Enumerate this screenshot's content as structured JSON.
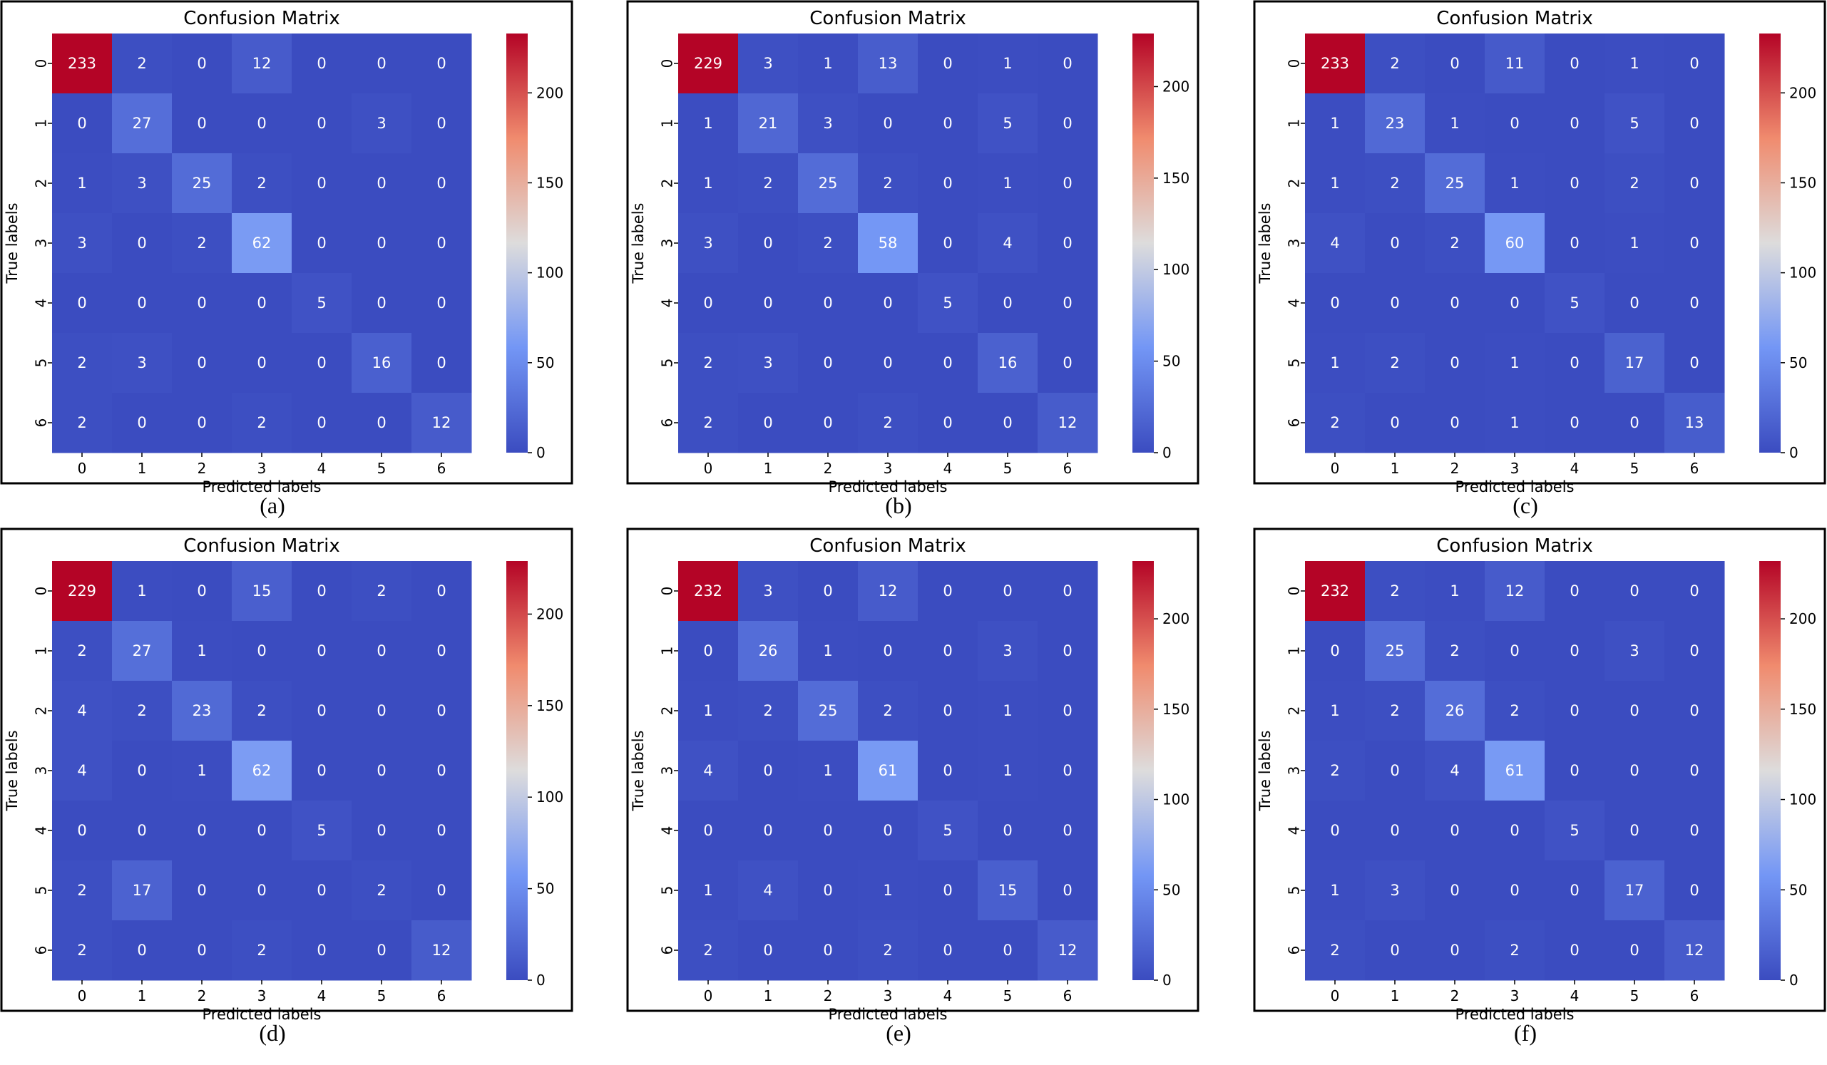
{
  "chart_data": [
    {
      "type": "heatmap",
      "caption": "(a)",
      "title": "Confusion Matrix",
      "xlabel": "Predicted labels",
      "ylabel": "True labels",
      "x_categories": [
        "0",
        "1",
        "2",
        "3",
        "4",
        "5",
        "6"
      ],
      "y_categories": [
        "0",
        "1",
        "2",
        "3",
        "4",
        "5",
        "6"
      ],
      "matrix": [
        [
          233,
          2,
          0,
          12,
          0,
          0,
          0
        ],
        [
          0,
          27,
          0,
          0,
          0,
          3,
          0
        ],
        [
          1,
          3,
          25,
          2,
          0,
          0,
          0
        ],
        [
          3,
          0,
          2,
          62,
          0,
          0,
          0
        ],
        [
          0,
          0,
          0,
          0,
          5,
          0,
          0
        ],
        [
          2,
          3,
          0,
          0,
          0,
          16,
          0
        ],
        [
          2,
          0,
          0,
          2,
          0,
          0,
          12
        ]
      ],
      "colorbar": {
        "min": 0,
        "max": 233,
        "ticks": [
          "0",
          "50",
          "100",
          "150",
          "200"
        ],
        "colormap": "coolwarm"
      }
    },
    {
      "type": "heatmap",
      "caption": "(b)",
      "title": "Confusion Matrix",
      "xlabel": "Predicted labels",
      "ylabel": "True labels",
      "x_categories": [
        "0",
        "1",
        "2",
        "3",
        "4",
        "5",
        "6"
      ],
      "y_categories": [
        "0",
        "1",
        "2",
        "3",
        "4",
        "5",
        "6"
      ],
      "matrix": [
        [
          229,
          3,
          1,
          13,
          0,
          1,
          0
        ],
        [
          1,
          21,
          3,
          0,
          0,
          5,
          0
        ],
        [
          1,
          2,
          25,
          2,
          0,
          1,
          0
        ],
        [
          3,
          0,
          2,
          58,
          0,
          4,
          0
        ],
        [
          0,
          0,
          0,
          0,
          5,
          0,
          0
        ],
        [
          2,
          3,
          0,
          0,
          0,
          16,
          0
        ],
        [
          2,
          0,
          0,
          2,
          0,
          0,
          12
        ]
      ],
      "colorbar": {
        "min": 0,
        "max": 229,
        "ticks": [
          "0",
          "50",
          "100",
          "150",
          "200"
        ],
        "colormap": "coolwarm"
      }
    },
    {
      "type": "heatmap",
      "caption": "(c)",
      "title": "Confusion Matrix",
      "xlabel": "Predicted labels",
      "ylabel": "True labels",
      "x_categories": [
        "0",
        "1",
        "2",
        "3",
        "4",
        "5",
        "6"
      ],
      "y_categories": [
        "0",
        "1",
        "2",
        "3",
        "4",
        "5",
        "6"
      ],
      "matrix": [
        [
          233,
          2,
          0,
          11,
          0,
          1,
          0
        ],
        [
          1,
          23,
          1,
          0,
          0,
          5,
          0
        ],
        [
          1,
          2,
          25,
          1,
          0,
          2,
          0
        ],
        [
          4,
          0,
          2,
          60,
          0,
          1,
          0
        ],
        [
          0,
          0,
          0,
          0,
          5,
          0,
          0
        ],
        [
          1,
          2,
          0,
          1,
          0,
          17,
          0
        ],
        [
          2,
          0,
          0,
          1,
          0,
          0,
          13
        ]
      ],
      "colorbar": {
        "min": 0,
        "max": 233,
        "ticks": [
          "0",
          "50",
          "100",
          "150",
          "200"
        ],
        "colormap": "coolwarm"
      }
    },
    {
      "type": "heatmap",
      "caption": "(d)",
      "title": "Confusion Matrix",
      "xlabel": "Predicted labels",
      "ylabel": "True labels",
      "x_categories": [
        "0",
        "1",
        "2",
        "3",
        "4",
        "5",
        "6"
      ],
      "y_categories": [
        "0",
        "1",
        "2",
        "3",
        "4",
        "5",
        "6"
      ],
      "matrix": [
        [
          229,
          1,
          0,
          15,
          0,
          2,
          0
        ],
        [
          2,
          27,
          1,
          0,
          0,
          0,
          0
        ],
        [
          4,
          2,
          23,
          2,
          0,
          0,
          0
        ],
        [
          4,
          0,
          1,
          62,
          0,
          0,
          0
        ],
        [
          0,
          0,
          0,
          0,
          5,
          0,
          0
        ],
        [
          2,
          17,
          0,
          0,
          0,
          2,
          0
        ],
        [
          2,
          0,
          0,
          2,
          0,
          0,
          12
        ]
      ],
      "colorbar": {
        "min": 0,
        "max": 229,
        "ticks": [
          "0",
          "50",
          "100",
          "150",
          "200"
        ],
        "colormap": "coolwarm"
      }
    },
    {
      "type": "heatmap",
      "caption": "(e)",
      "title": "Confusion Matrix",
      "xlabel": "Predicted labels",
      "ylabel": "True labels",
      "x_categories": [
        "0",
        "1",
        "2",
        "3",
        "4",
        "5",
        "6"
      ],
      "y_categories": [
        "0",
        "1",
        "2",
        "3",
        "4",
        "5",
        "6"
      ],
      "matrix": [
        [
          232,
          3,
          0,
          12,
          0,
          0,
          0
        ],
        [
          0,
          26,
          1,
          0,
          0,
          3,
          0
        ],
        [
          1,
          2,
          25,
          2,
          0,
          1,
          0
        ],
        [
          4,
          0,
          1,
          61,
          0,
          1,
          0
        ],
        [
          0,
          0,
          0,
          0,
          5,
          0,
          0
        ],
        [
          1,
          4,
          0,
          1,
          0,
          15,
          0
        ],
        [
          2,
          0,
          0,
          2,
          0,
          0,
          12
        ]
      ],
      "colorbar": {
        "min": 0,
        "max": 232,
        "ticks": [
          "0",
          "50",
          "100",
          "150",
          "200"
        ],
        "colormap": "coolwarm"
      }
    },
    {
      "type": "heatmap",
      "caption": "(f)",
      "title": "Confusion Matrix",
      "xlabel": "Predicted labels",
      "ylabel": "True labels",
      "x_categories": [
        "0",
        "1",
        "2",
        "3",
        "4",
        "5",
        "6"
      ],
      "y_categories": [
        "0",
        "1",
        "2",
        "3",
        "4",
        "5",
        "6"
      ],
      "matrix": [
        [
          232,
          2,
          1,
          12,
          0,
          0,
          0
        ],
        [
          0,
          25,
          2,
          0,
          0,
          3,
          0
        ],
        [
          1,
          2,
          26,
          2,
          0,
          0,
          0
        ],
        [
          2,
          0,
          4,
          61,
          0,
          0,
          0
        ],
        [
          0,
          0,
          0,
          0,
          5,
          0,
          0
        ],
        [
          1,
          3,
          0,
          0,
          0,
          17,
          0
        ],
        [
          2,
          0,
          0,
          2,
          0,
          0,
          12
        ]
      ],
      "colorbar": {
        "min": 0,
        "max": 232,
        "ticks": [
          "0",
          "50",
          "100",
          "150",
          "200"
        ],
        "colormap": "coolwarm"
      }
    }
  ]
}
